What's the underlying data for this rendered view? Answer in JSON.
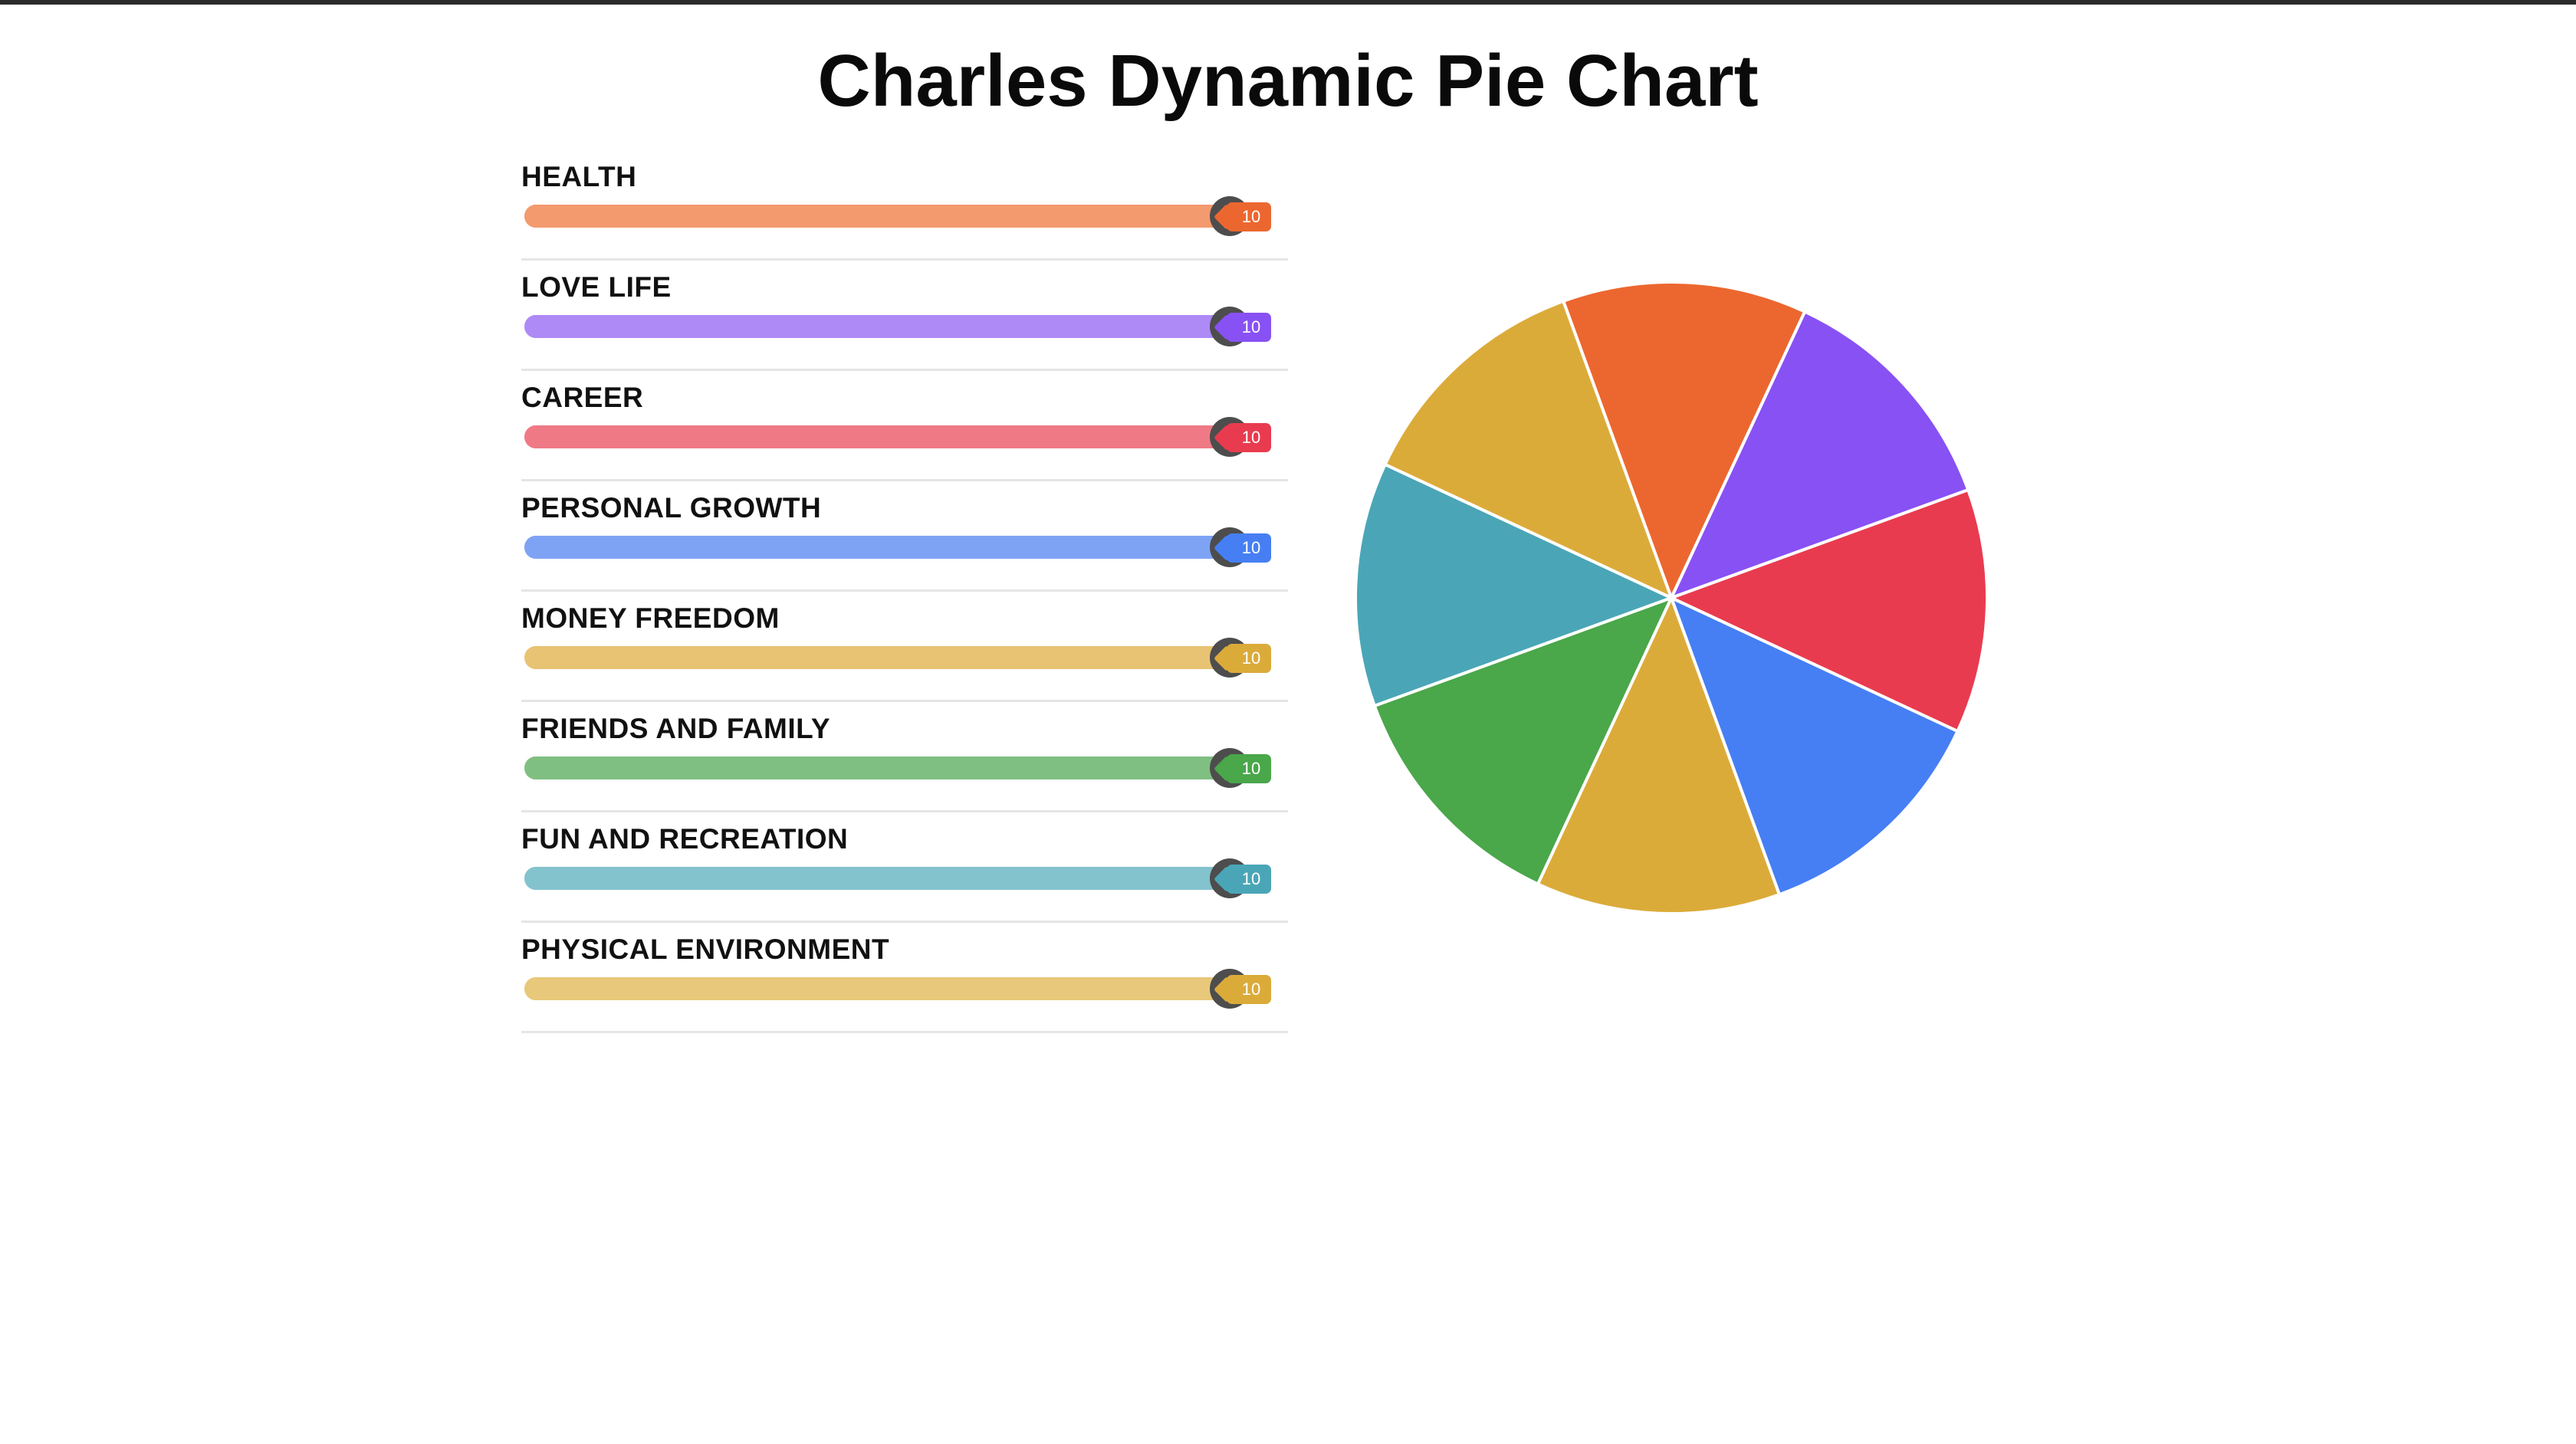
{
  "title": "Charles Dynamic Pie Chart",
  "sliders": [
    {
      "label": "HEALTH",
      "value": 10,
      "max": 10,
      "color": "#ec672f",
      "track_color": "#f39a6f"
    },
    {
      "label": "LOVE LIFE",
      "value": 10,
      "max": 10,
      "color": "#8851f4",
      "track_color": "#ae8af6"
    },
    {
      "label": "CAREER",
      "value": 10,
      "max": 10,
      "color": "#e93b4f",
      "track_color": "#ef7a86"
    },
    {
      "label": "PERSONAL GROWTH",
      "value": 10,
      "max": 10,
      "color": "#467ff3",
      "track_color": "#7ea3f4"
    },
    {
      "label": "MONEY FREEDOM",
      "value": 10,
      "max": 10,
      "color": "#dbab3a",
      "track_color": "#e8c373"
    },
    {
      "label": "FRIENDS AND FAMILY",
      "value": 10,
      "max": 10,
      "color": "#4aa74a",
      "track_color": "#80bf82"
    },
    {
      "label": "FUN AND RECREATION",
      "value": 10,
      "max": 10,
      "color": "#4aa6b7",
      "track_color": "#83c3cd"
    },
    {
      "label": "PHYSICAL ENVIRONMENT",
      "value": 10,
      "max": 10,
      "color": "#dbab3a",
      "track_color": "#e8c87a"
    }
  ],
  "chart_data": {
    "type": "pie",
    "categories": [
      "HEALTH",
      "LOVE LIFE",
      "CAREER",
      "PERSONAL GROWTH",
      "MONEY FREEDOM",
      "FRIENDS AND FAMILY",
      "FUN AND RECREATION",
      "PHYSICAL ENVIRONMENT"
    ],
    "values": [
      10,
      10,
      10,
      10,
      10,
      10,
      10,
      10
    ],
    "colors": [
      "#ec672f",
      "#8851f4",
      "#e93b4f",
      "#467ff3",
      "#dbab3a",
      "#4aa74a",
      "#4aa6b7",
      "#dbab3a"
    ],
    "start_angle_deg": -20,
    "slice_border_color": "#ffffff",
    "legend": "none"
  }
}
